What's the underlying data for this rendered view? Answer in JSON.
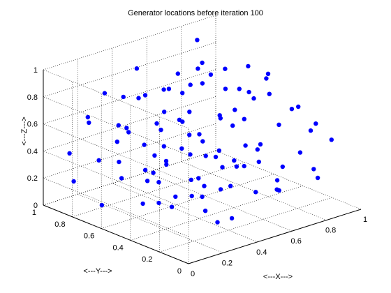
{
  "chart_data": {
    "type": "scatter",
    "title": "Generator locations before iteration 100",
    "xlabel": "<---X--->",
    "ylabel": "<---Y--->",
    "zlabel": "<---Z--->",
    "xlim": [
      0,
      1
    ],
    "ylim": [
      0,
      1
    ],
    "zlim": [
      0,
      1
    ],
    "x_ticks": [
      0,
      0.2,
      0.4,
      0.6,
      0.8,
      1
    ],
    "y_ticks": [
      0,
      0.2,
      0.4,
      0.6,
      0.8,
      1
    ],
    "z_ticks": [
      0,
      0.2,
      0.4,
      0.6,
      0.8,
      1
    ],
    "x_tick_labels": [
      "0",
      "0.2",
      "0.4",
      "0.6",
      "0.8",
      "1"
    ],
    "y_tick_labels": [
      "0",
      "0.2",
      "0.4",
      "0.6",
      "0.8",
      "1"
    ],
    "z_tick_labels": [
      "0",
      "0.2",
      "0.4",
      "0.6",
      "0.8",
      "1"
    ],
    "grid": true,
    "view": "3d",
    "marker_color": "#0000ff",
    "points": [
      {
        "x": 0.52,
        "y": 0.86,
        "z": 0.09
      },
      {
        "x": 0.55,
        "y": 0.5,
        "z": 0.96
      },
      {
        "x": 0.7,
        "y": 0.12,
        "z": 0.81
      },
      {
        "x": 0.12,
        "y": 0.72,
        "z": 0.9
      },
      {
        "x": 0.08,
        "y": 0.3,
        "z": 0.44
      },
      {
        "x": 0.27,
        "y": 0.11,
        "z": 0.68
      },
      {
        "x": 0.84,
        "y": 0.81,
        "z": 0.1
      },
      {
        "x": 0.2,
        "y": 0.65,
        "z": 0.61
      },
      {
        "x": 0.46,
        "y": 0.7,
        "z": 0.27
      },
      {
        "x": 0.9,
        "y": 0.3,
        "z": 0.33
      },
      {
        "x": 0.32,
        "y": 0.55,
        "z": 0.92
      },
      {
        "x": 0.72,
        "y": 0.64,
        "z": 0.53
      },
      {
        "x": 0.15,
        "y": 0.16,
        "z": 0.49
      },
      {
        "x": 0.6,
        "y": 0.25,
        "z": 0.18
      },
      {
        "x": 0.38,
        "y": 0.9,
        "z": 0.69
      },
      {
        "x": 0.95,
        "y": 0.58,
        "z": 0.77
      },
      {
        "x": 0.05,
        "y": 0.85,
        "z": 0.22
      },
      {
        "x": 0.66,
        "y": 0.4,
        "z": 0.63
      },
      {
        "x": 0.42,
        "y": 0.2,
        "z": 0.08
      },
      {
        "x": 0.78,
        "y": 0.92,
        "z": 0.41
      },
      {
        "x": 0.24,
        "y": 0.4,
        "z": 0.15
      },
      {
        "x": 0.57,
        "y": 0.75,
        "z": 0.85
      },
      {
        "x": 0.86,
        "y": 0.18,
        "z": 0.56
      },
      {
        "x": 0.1,
        "y": 0.58,
        "z": 0.34
      },
      {
        "x": 0.48,
        "y": 0.35,
        "z": 0.73
      },
      {
        "x": 0.35,
        "y": 0.62,
        "z": 0.04
      },
      {
        "x": 0.92,
        "y": 0.7,
        "z": 0.2
      },
      {
        "x": 0.18,
        "y": 0.9,
        "z": 0.58
      },
      {
        "x": 0.63,
        "y": 0.1,
        "z": 0.42
      },
      {
        "x": 0.75,
        "y": 0.48,
        "z": 0.95
      },
      {
        "x": 0.29,
        "y": 0.25,
        "z": 0.27
      },
      {
        "x": 0.52,
        "y": 0.52,
        "z": 0.47
      },
      {
        "x": 0.02,
        "y": 0.45,
        "z": 0.8
      },
      {
        "x": 0.82,
        "y": 0.35,
        "z": 0.06
      },
      {
        "x": 0.4,
        "y": 0.78,
        "z": 0.38
      },
      {
        "x": 0.68,
        "y": 0.85,
        "z": 0.62
      },
      {
        "x": 0.13,
        "y": 0.08,
        "z": 0.87
      },
      {
        "x": 0.88,
        "y": 0.55,
        "z": 0.29
      },
      {
        "x": 0.45,
        "y": 0.05,
        "z": 0.55
      },
      {
        "x": 0.22,
        "y": 0.48,
        "z": 0.74
      },
      {
        "x": 0.58,
        "y": 0.62,
        "z": 0.13
      },
      {
        "x": 0.97,
        "y": 0.9,
        "z": 0.66
      },
      {
        "x": 0.33,
        "y": 0.38,
        "z": 0.51
      },
      {
        "x": 0.7,
        "y": 0.22,
        "z": 0.24
      },
      {
        "x": 0.07,
        "y": 0.68,
        "z": 0.11
      },
      {
        "x": 0.5,
        "y": 0.95,
        "z": 0.83
      },
      {
        "x": 0.8,
        "y": 0.6,
        "z": 0.71
      },
      {
        "x": 0.26,
        "y": 0.8,
        "z": 0.45
      },
      {
        "x": 0.62,
        "y": 0.32,
        "z": 0.88
      },
      {
        "x": 0.16,
        "y": 0.28,
        "z": 0.31
      },
      {
        "x": 0.93,
        "y": 0.12,
        "z": 0.49
      },
      {
        "x": 0.37,
        "y": 0.15,
        "z": 0.36
      },
      {
        "x": 0.74,
        "y": 0.76,
        "z": 0.17
      },
      {
        "x": 0.04,
        "y": 0.2,
        "z": 0.63
      },
      {
        "x": 0.55,
        "y": 0.42,
        "z": 0.31
      },
      {
        "x": 0.85,
        "y": 0.95,
        "z": 0.9
      },
      {
        "x": 0.3,
        "y": 0.7,
        "z": 0.8
      },
      {
        "x": 0.65,
        "y": 0.55,
        "z": 0.05
      },
      {
        "x": 0.11,
        "y": 0.95,
        "z": 0.36
      },
      {
        "x": 0.47,
        "y": 0.6,
        "z": 0.6
      },
      {
        "x": 0.78,
        "y": 0.05,
        "z": 0.7
      },
      {
        "x": 0.21,
        "y": 0.05,
        "z": 0.2
      },
      {
        "x": 0.99,
        "y": 0.42,
        "z": 0.58
      },
      {
        "x": 0.39,
        "y": 0.45,
        "z": 0.97
      },
      {
        "x": 0.6,
        "y": 0.88,
        "z": 0.5
      },
      {
        "x": 0.14,
        "y": 0.4,
        "z": 0.57
      },
      {
        "x": 0.9,
        "y": 0.75,
        "z": 0.45
      },
      {
        "x": 0.35,
        "y": 0.3,
        "z": 0.12
      },
      {
        "x": 0.72,
        "y": 0.38,
        "z": 0.39
      },
      {
        "x": 0.25,
        "y": 0.58,
        "z": 0.26
      },
      {
        "x": 0.53,
        "y": 0.18,
        "z": 0.93
      },
      {
        "x": 0.83,
        "y": 0.45,
        "z": 0.84
      },
      {
        "x": 0.06,
        "y": 0.55,
        "z": 0.49
      },
      {
        "x": 0.44,
        "y": 0.82,
        "z": 0.16
      },
      {
        "x": 0.67,
        "y": 0.7,
        "z": 0.76
      },
      {
        "x": 0.19,
        "y": 0.22,
        "z": 0.78
      },
      {
        "x": 0.96,
        "y": 0.25,
        "z": 0.14
      },
      {
        "x": 0.41,
        "y": 0.55,
        "z": 0.66
      },
      {
        "x": 0.58,
        "y": 0.08,
        "z": 0.28
      },
      {
        "x": 0.28,
        "y": 0.95,
        "z": 0.24
      },
      {
        "x": 0.76,
        "y": 0.28,
        "z": 0.6
      },
      {
        "x": 0.09,
        "y": 0.8,
        "z": 0.7
      },
      {
        "x": 0.5,
        "y": 0.28,
        "z": 0.44
      },
      {
        "x": 0.87,
        "y": 0.65,
        "z": 0.09
      },
      {
        "x": 0.34,
        "y": 0.1,
        "z": 0.84
      },
      {
        "x": 0.64,
        "y": 0.95,
        "z": 0.32
      },
      {
        "x": 0.17,
        "y": 0.5,
        "z": 0.96
      },
      {
        "x": 0.93,
        "y": 0.85,
        "z": 0.55
      },
      {
        "x": 0.43,
        "y": 0.68,
        "z": 0.4
      },
      {
        "x": 0.7,
        "y": 0.5,
        "z": 0.22
      },
      {
        "x": 0.23,
        "y": 0.32,
        "z": 0.62
      },
      {
        "x": 0.56,
        "y": 0.8,
        "z": 0.72
      },
      {
        "x": 0.81,
        "y": 0.1,
        "z": 0.33
      },
      {
        "x": 0.03,
        "y": 0.35,
        "z": 0.28
      },
      {
        "x": 0.47,
        "y": 0.45,
        "z": 0.19
      },
      {
        "x": 0.61,
        "y": 0.66,
        "z": 0.91
      },
      {
        "x": 0.31,
        "y": 0.85,
        "z": 0.53
      },
      {
        "x": 0.89,
        "y": 0.5,
        "z": 0.68
      },
      {
        "x": 0.12,
        "y": 0.12,
        "z": 0.4
      },
      {
        "x": 0.77,
        "y": 0.82,
        "z": 0.82
      }
    ]
  }
}
